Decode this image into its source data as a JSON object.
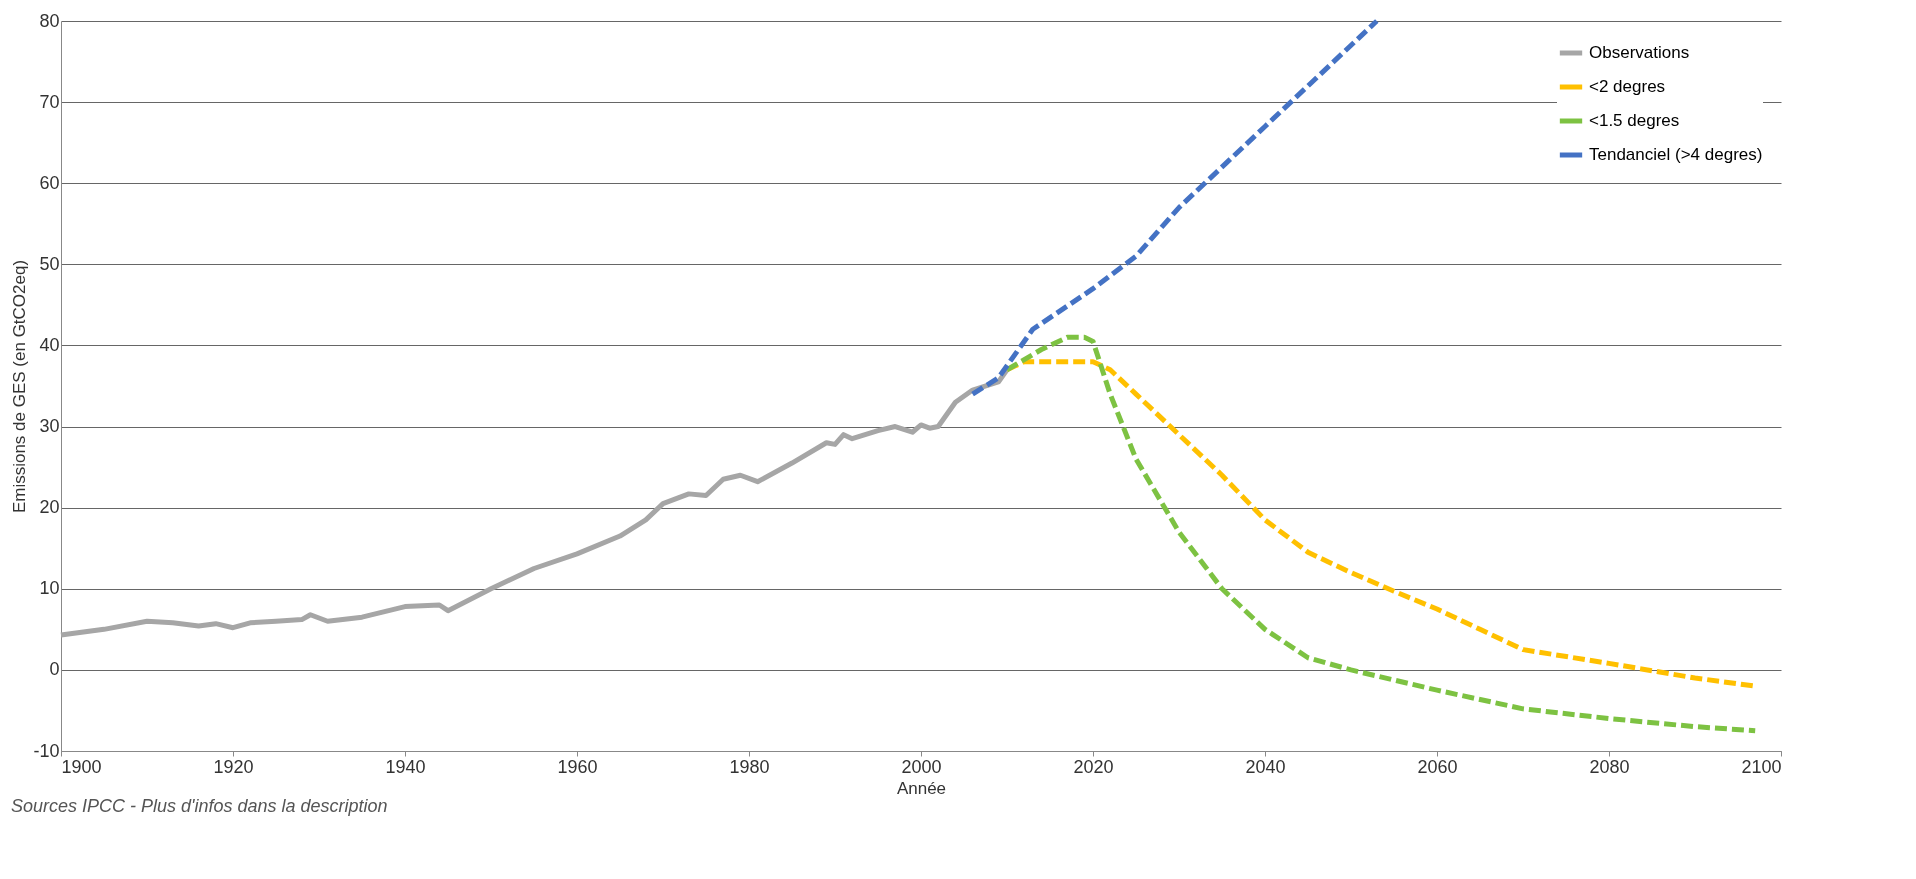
{
  "chart_data": {
    "type": "line",
    "xlabel": "Année",
    "ylabel": "Emissions de GES (en GtCO2eq)",
    "annotations": [
      "Sources IPCC - Plus d'infos dans la description"
    ],
    "xlim": [
      1900,
      2100
    ],
    "xticks": [
      1900,
      1920,
      1940,
      1960,
      1980,
      2000,
      2020,
      2040,
      2060,
      2080,
      2100
    ],
    "ylim": [
      -10,
      80
    ],
    "yticks": [
      -10,
      0,
      10,
      20,
      30,
      40,
      50,
      60,
      70,
      80
    ],
    "grid": "y",
    "legend": "top right",
    "series": [
      {
        "name": "Observations",
        "color": "#a6a6a6",
        "line_style": "solid",
        "x": [
          1900,
          1905,
          1910,
          1913,
          1916,
          1918,
          1920,
          1922,
          1925,
          1928,
          1929,
          1931,
          1935,
          1940,
          1944,
          1945,
          1950,
          1955,
          1960,
          1965,
          1968,
          1970,
          1973,
          1975,
          1977,
          1979,
          1981,
          1985,
          1989,
          1990,
          1991,
          1992,
          1995,
          1997,
          1999,
          2000,
          2001,
          2002,
          2004,
          2006,
          2009,
          2010
        ],
        "values": [
          4.3,
          5,
          6,
          5.8,
          5.4,
          5.7,
          5.2,
          5.8,
          6,
          6.2,
          6.8,
          6,
          6.5,
          7.8,
          8,
          7.3,
          10,
          12.5,
          14.3,
          16.5,
          18.5,
          20.5,
          21.7,
          21.5,
          23.5,
          24,
          23.2,
          25.5,
          28,
          27.8,
          29,
          28.5,
          29.5,
          30,
          29.3,
          30.2,
          29.8,
          30,
          33,
          34.5,
          35.5,
          37
        ]
      },
      {
        "name": "<2 degres",
        "color": "#ffc000",
        "line_style": "dashed",
        "x": [
          2010,
          2012,
          2020,
          2022,
          2025,
          2030,
          2035,
          2040,
          2045,
          2050,
          2055,
          2060,
          2065,
          2070,
          2080,
          2090,
          2097
        ],
        "values": [
          37,
          38,
          38,
          37,
          34,
          29,
          24,
          18.5,
          14.5,
          12,
          9.7,
          7.5,
          5,
          2.5,
          0.8,
          -1,
          -2
        ]
      },
      {
        "name": "<1.5 degres",
        "color": "#7dc242",
        "line_style": "dashed",
        "x": [
          2010,
          2014,
          2017,
          2019,
          2020,
          2022,
          2025,
          2030,
          2035,
          2040,
          2045,
          2050,
          2060,
          2070,
          2080,
          2090,
          2097
        ],
        "values": [
          37,
          39.5,
          41,
          41,
          40.5,
          34,
          26,
          17,
          10,
          5,
          1.5,
          0,
          -2.5,
          -4.8,
          -6,
          -7,
          -7.5
        ]
      },
      {
        "name": "Tendanciel (>4 degres)",
        "color": "#4472c4",
        "line_style": "dashed",
        "x": [
          2006,
          2009,
          2013,
          2020,
          2025,
          2030,
          2040,
          2053
        ],
        "values": [
          34,
          36,
          42,
          47,
          51,
          57,
          67,
          80
        ]
      }
    ]
  }
}
